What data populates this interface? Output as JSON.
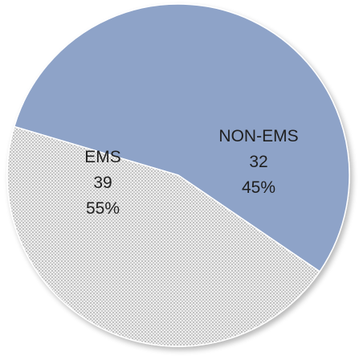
{
  "chart_data": {
    "type": "pie",
    "slices": [
      {
        "name": "EMS",
        "value": 39,
        "percent": "55%",
        "count_label": "39",
        "color": "#8ea3c8",
        "fill": "solid"
      },
      {
        "name": "NON-EMS",
        "value": 32,
        "percent": "45%",
        "count_label": "32",
        "color": "#e6e6e6",
        "fill": "dotted"
      }
    ],
    "title": "",
    "legend": "none",
    "grid": false
  }
}
